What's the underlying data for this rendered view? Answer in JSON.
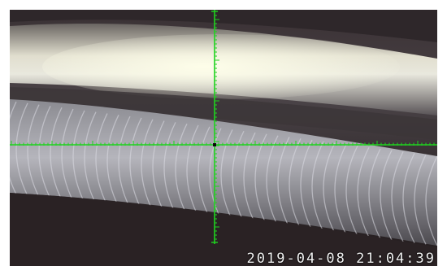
{
  "camera_view": {
    "timestamp": "2019-04-08  21:04:39",
    "reticle_color": "#1fd21f",
    "scene": "weld-bead-inspection"
  }
}
